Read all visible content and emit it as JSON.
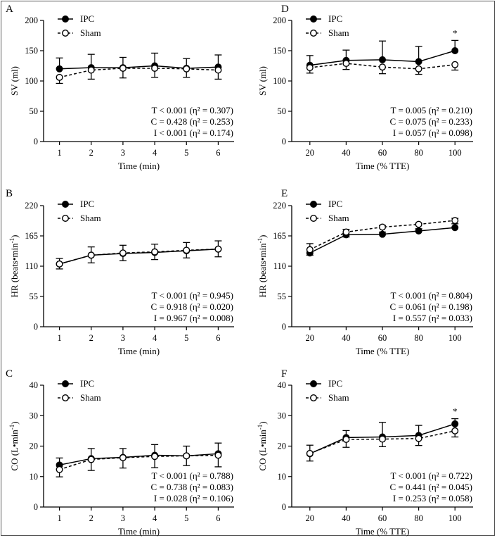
{
  "chart_data": [
    {
      "panel": "A",
      "type": "line",
      "xlabel": "Time (min)",
      "ylabel": "SV (ml)",
      "x": [
        1,
        2,
        3,
        4,
        5,
        6
      ],
      "xlim": [
        0.5,
        6.5
      ],
      "xticks": [
        1,
        2,
        3,
        4,
        5,
        6
      ],
      "ylim": [
        0,
        200
      ],
      "yticks": [
        0,
        50,
        100,
        150,
        200
      ],
      "series": [
        {
          "name": "IPC",
          "values": [
            120,
            122,
            122,
            125,
            121,
            123
          ],
          "errors": [
            18,
            22,
            17,
            21,
            16,
            20
          ]
        },
        {
          "name": "Sham",
          "values": [
            106,
            118,
            121,
            121,
            120,
            118
          ],
          "errors": [
            10,
            15,
            16,
            15,
            14,
            15
          ]
        }
      ],
      "stats": [
        "T < 0.001 (η² = 0.307)",
        "C = 0.428 (η² = 0.253)",
        "I < 0.001 (η² = 0.174)"
      ],
      "annotations": [],
      "legend": "top-left"
    },
    {
      "panel": "D",
      "type": "line",
      "xlabel": "Time (% TTE)",
      "ylabel": "SV (ml)",
      "x": [
        20,
        40,
        60,
        80,
        100
      ],
      "xlim": [
        10,
        110
      ],
      "xticks": [
        20,
        40,
        60,
        80,
        100
      ],
      "ylim": [
        0,
        200
      ],
      "yticks": [
        0,
        50,
        100,
        150,
        200
      ],
      "series": [
        {
          "name": "IPC",
          "values": [
            126,
            134,
            135,
            132,
            150
          ],
          "errors": [
            16,
            17,
            31,
            25,
            17
          ]
        },
        {
          "name": "Sham",
          "values": [
            122,
            129,
            123,
            120,
            127
          ],
          "errors": [
            9,
            10,
            11,
            9,
            9
          ]
        }
      ],
      "stats": [
        "T = 0.005 (η² = 0.210)",
        "C = 0.075 (η² = 0.233)",
        "I = 0.057 (η² = 0.098)"
      ],
      "annotations": [
        {
          "x": 100,
          "text": "*"
        }
      ],
      "legend": "top-left"
    },
    {
      "panel": "B",
      "type": "line",
      "xlabel": "Time (min)",
      "ylabel": "HR (beats•min",
      "ylabel_sup": "-1",
      "ylabel_end": ")",
      "x": [
        1,
        2,
        3,
        4,
        5,
        6
      ],
      "xlim": [
        0.5,
        6.5
      ],
      "xticks": [
        1,
        2,
        3,
        4,
        5,
        6
      ],
      "ylim": [
        0,
        220
      ],
      "yticks": [
        0,
        55,
        110,
        165,
        220
      ],
      "series": [
        {
          "name": "IPC",
          "values": [
            114,
            130,
            133,
            135,
            138,
            141
          ],
          "errors": [
            10,
            15,
            15,
            15,
            15,
            15
          ]
        },
        {
          "name": "Sham",
          "values": [
            114,
            130,
            134,
            136,
            139,
            141
          ],
          "errors": [
            9,
            14,
            14,
            14,
            14,
            14
          ]
        }
      ],
      "stats": [
        "T < 0.001 (η² = 0.945)",
        "C = 0.918 (η² = 0.020)",
        "I = 0.967 (η² = 0.008)"
      ],
      "annotations": [],
      "legend": "top-left"
    },
    {
      "panel": "E",
      "type": "line",
      "xlabel": "Time (% TTE)",
      "ylabel": "HR (beats•min",
      "ylabel_sup": "-1",
      "ylabel_end": ")",
      "x": [
        20,
        40,
        60,
        80,
        100
      ],
      "xlim": [
        10,
        110
      ],
      "xticks": [
        20,
        40,
        60,
        80,
        100
      ],
      "ylim": [
        0,
        220
      ],
      "yticks": [
        0,
        55,
        110,
        165,
        220
      ],
      "series": [
        {
          "name": "IPC",
          "values": [
            134,
            167,
            168,
            174,
            180
          ],
          "errors": [
            17,
            10,
            16,
            14,
            17
          ]
        },
        {
          "name": "Sham",
          "values": [
            140,
            172,
            181,
            186,
            193
          ],
          "errors": [
            10,
            9,
            9,
            8,
            6
          ]
        }
      ],
      "stats": [
        "T < 0.001 (η² = 0.804)",
        "C = 0.061 (η² = 0.198)",
        "I = 0.557 (η² = 0.033)"
      ],
      "annotations": [],
      "legend": "top-left"
    },
    {
      "panel": "C",
      "type": "line",
      "xlabel": "Time (min)",
      "ylabel": "CO (L•min",
      "ylabel_sup": "-1",
      "ylabel_end": ")",
      "x": [
        1,
        2,
        3,
        4,
        5,
        6
      ],
      "xlim": [
        0.5,
        6.5
      ],
      "xticks": [
        1,
        2,
        3,
        4,
        5,
        6
      ],
      "ylim": [
        0,
        40
      ],
      "yticks": [
        0,
        10,
        20,
        30,
        40
      ],
      "series": [
        {
          "name": "IPC",
          "values": [
            13.8,
            15.9,
            16.3,
            17.0,
            16.8,
            17.5
          ],
          "errors": [
            2.3,
            3.3,
            2.9,
            3.5,
            3.2,
            3.5
          ]
        },
        {
          "name": "Sham",
          "values": [
            12.3,
            15.6,
            16.2,
            16.6,
            16.8,
            17.0
          ],
          "errors": [
            2.4,
            3.6,
            3.4,
            3.7,
            3.2,
            3.8
          ]
        }
      ],
      "stats": [
        "T < 0.001 (η² = 0.788)",
        "C = 0.738 (η² = 0.083)",
        "I = 0.028 (η² = 0.106)"
      ],
      "annotations": [],
      "legend": "top-left"
    },
    {
      "panel": "F",
      "type": "line",
      "xlabel": "Time (% TTE)",
      "ylabel": "CO (L•min",
      "ylabel_sup": "-1",
      "ylabel_end": ")",
      "x": [
        20,
        40,
        60,
        80,
        100
      ],
      "xlim": [
        10,
        110
      ],
      "xticks": [
        20,
        40,
        60,
        80,
        100
      ],
      "ylim": [
        0,
        40
      ],
      "yticks": [
        0,
        10,
        20,
        30,
        40
      ],
      "series": [
        {
          "name": "IPC",
          "values": [
            17.5,
            22.8,
            23.0,
            23.5,
            27.3
          ],
          "errors": [
            2.8,
            2.3,
            4.8,
            3.3,
            1.7
          ]
        },
        {
          "name": "Sham",
          "values": [
            17.6,
            22.2,
            22.3,
            22.5,
            25.0
          ],
          "errors": [
            2.5,
            2.6,
            2.5,
            2.3,
            2.0
          ]
        }
      ],
      "stats": [
        "T < 0.001 (η² = 0.722)",
        "C = 0.441 (η² = 0.045)",
        "I = 0.253 (η² = 0.058)"
      ],
      "annotations": [
        {
          "x": 100,
          "text": "*"
        }
      ],
      "legend": "top-left"
    }
  ]
}
